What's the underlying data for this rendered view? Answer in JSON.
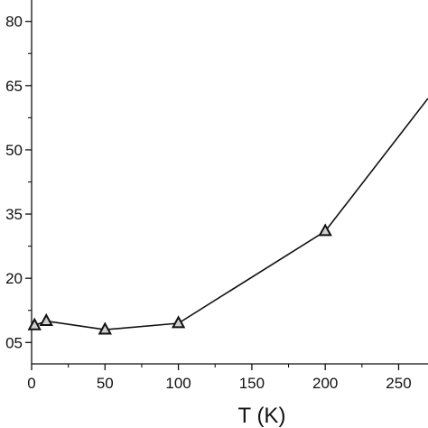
{
  "chart_data": {
    "type": "line",
    "title": "",
    "xlabel": "T (K)",
    "ylabel": "",
    "xlim": [
      0,
      270
    ],
    "ylim": [
      0,
      85
    ],
    "x_ticks": [
      0,
      50,
      100,
      150,
      200,
      250
    ],
    "y_ticks": [
      5,
      20,
      35,
      50,
      65,
      80
    ],
    "y_tick_labels": [
      "05",
      "20",
      "35",
      "50",
      "65",
      "80"
    ],
    "grid": false,
    "marker": "triangle",
    "series": [
      {
        "x": [
          2,
          10,
          50,
          100,
          200,
          270
        ],
        "y": [
          9,
          10,
          8,
          9.5,
          31,
          62
        ],
        "marked": [
          true,
          true,
          true,
          true,
          true,
          false
        ]
      }
    ]
  }
}
